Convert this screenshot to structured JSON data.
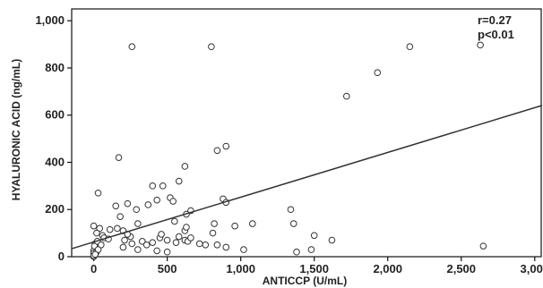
{
  "chart_data": {
    "type": "scatter",
    "title": "",
    "xlabel": "ANTICCP (U/mL)",
    "ylabel": "HYALURONIC ACID (ng/mL)",
    "xlim": [
      -150,
      3050
    ],
    "ylim": [
      0,
      1050
    ],
    "xticks": [
      0,
      500,
      1000,
      1500,
      2000,
      2500,
      3000
    ],
    "xtick_labels": [
      "0",
      "500",
      "1,000",
      "1,500",
      "2,000",
      "2,500",
      "3,000"
    ],
    "yticks": [
      0,
      200,
      400,
      600,
      800,
      1000
    ],
    "ytick_labels": [
      "0",
      "200",
      "400",
      "600",
      "800",
      "1,000"
    ],
    "grid": false,
    "annotations": [
      "r=0.27",
      "p<0.01"
    ],
    "fit_line": {
      "x": [
        -150,
        3050
      ],
      "y": [
        34,
        641
      ]
    },
    "points": [
      [
        260,
        890
      ],
      [
        800,
        890
      ],
      [
        2150,
        890
      ],
      [
        2630,
        897
      ],
      [
        1930,
        780
      ],
      [
        1720,
        680
      ],
      [
        170,
        420
      ],
      [
        620,
        383
      ],
      [
        840,
        450
      ],
      [
        900,
        468
      ],
      [
        400,
        300
      ],
      [
        470,
        300
      ],
      [
        580,
        320
      ],
      [
        30,
        270
      ],
      [
        430,
        240
      ],
      [
        520,
        250
      ],
      [
        540,
        235
      ],
      [
        660,
        195
      ],
      [
        630,
        180
      ],
      [
        880,
        245
      ],
      [
        900,
        230
      ],
      [
        230,
        225
      ],
      [
        150,
        215
      ],
      [
        370,
        220
      ],
      [
        180,
        170
      ],
      [
        290,
        200
      ],
      [
        300,
        140
      ],
      [
        0,
        130
      ],
      [
        40,
        120
      ],
      [
        110,
        115
      ],
      [
        160,
        120
      ],
      [
        200,
        110
      ],
      [
        20,
        100
      ],
      [
        60,
        90
      ],
      [
        70,
        80
      ],
      [
        100,
        75
      ],
      [
        210,
        70
      ],
      [
        250,
        85
      ],
      [
        330,
        65
      ],
      [
        400,
        60
      ],
      [
        450,
        80
      ],
      [
        500,
        70
      ],
      [
        580,
        85
      ],
      [
        620,
        70
      ],
      [
        640,
        65
      ],
      [
        660,
        80
      ],
      [
        560,
        60
      ],
      [
        720,
        55
      ],
      [
        760,
        50
      ],
      [
        840,
        50
      ],
      [
        900,
        40
      ],
      [
        960,
        130
      ],
      [
        1080,
        140
      ],
      [
        1020,
        30
      ],
      [
        1340,
        200
      ],
      [
        1360,
        140
      ],
      [
        1380,
        20
      ],
      [
        1500,
        90
      ],
      [
        1480,
        30
      ],
      [
        1620,
        70
      ],
      [
        2650,
        45
      ],
      [
        10,
        55
      ],
      [
        15,
        40
      ],
      [
        5,
        30
      ],
      [
        0,
        25
      ],
      [
        0,
        15
      ],
      [
        20,
        20
      ],
      [
        5,
        45
      ],
      [
        25,
        65
      ],
      [
        300,
        30
      ],
      [
        360,
        50
      ],
      [
        430,
        25
      ],
      [
        500,
        20
      ],
      [
        200,
        40
      ],
      [
        260,
        55
      ],
      [
        620,
        110
      ],
      [
        550,
        150
      ],
      [
        630,
        125
      ],
      [
        810,
        100
      ],
      [
        820,
        140
      ],
      [
        460,
        95
      ],
      [
        230,
        95
      ],
      [
        50,
        50
      ],
      [
        30,
        30
      ],
      [
        0,
        0
      ],
      [
        0,
        5
      ],
      [
        10,
        10
      ]
    ]
  }
}
